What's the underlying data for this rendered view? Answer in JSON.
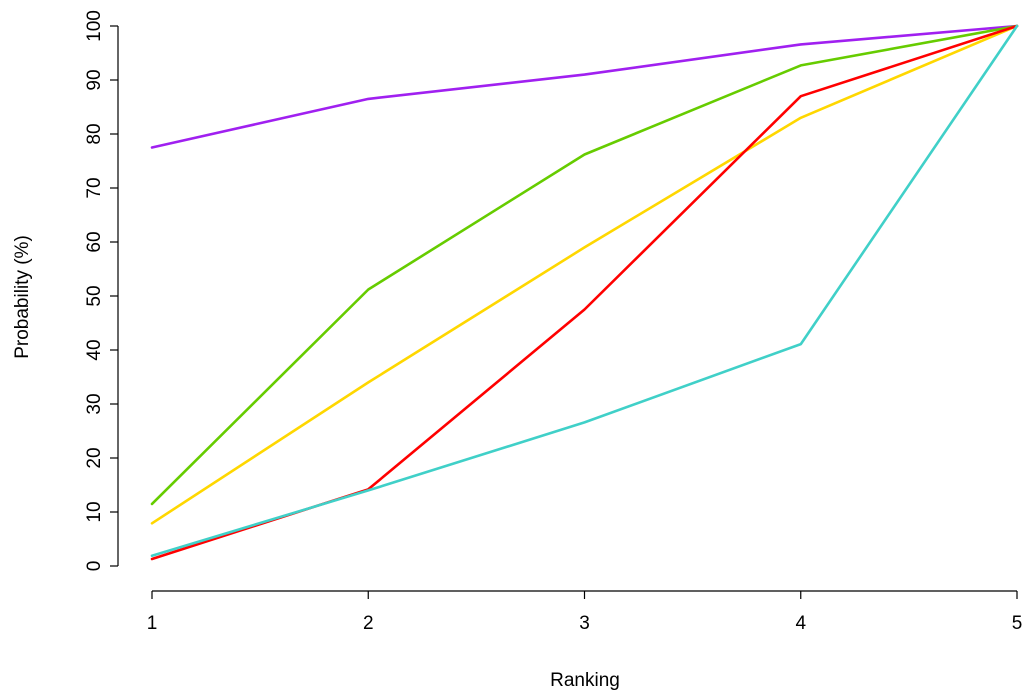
{
  "chart_data": {
    "type": "line",
    "title": "",
    "xlabel": "Ranking",
    "ylabel": "Probability (%)",
    "x": [
      1,
      2,
      3,
      4,
      5
    ],
    "x_ticks": [
      "1",
      "2",
      "3",
      "4",
      "5"
    ],
    "y_ticks": [
      "0",
      "10",
      "20",
      "30",
      "40",
      "50",
      "60",
      "70",
      "80",
      "90",
      "100"
    ],
    "xlim": [
      1,
      5
    ],
    "ylim": [
      0,
      100
    ],
    "grid": false,
    "legend": "none",
    "series": [
      {
        "color": "#a020f0",
        "values": [
          77.5,
          86.5,
          91,
          96.6,
          100
        ]
      },
      {
        "color": "#66cc00",
        "values": [
          11.5,
          51.2,
          76.2,
          92.7,
          100
        ]
      },
      {
        "color": "#ffd700",
        "values": [
          7.9,
          34,
          59,
          83,
          100
        ]
      },
      {
        "color": "#ff0000",
        "values": [
          1.3,
          14.2,
          47.5,
          87,
          100
        ]
      },
      {
        "color": "#40d0c8",
        "values": [
          1.9,
          14,
          26.6,
          41.1,
          100
        ]
      }
    ]
  }
}
